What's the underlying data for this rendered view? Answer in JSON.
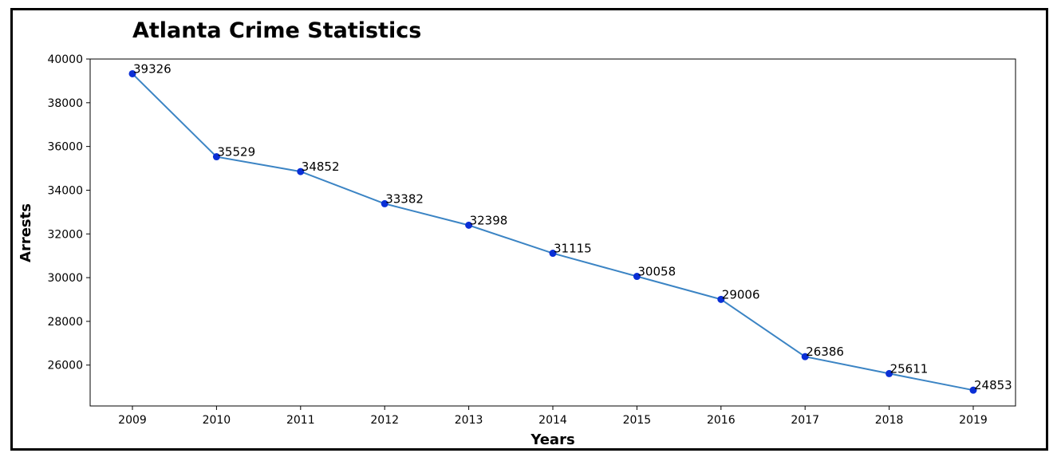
{
  "chart_data": {
    "type": "line",
    "title": "Atlanta Crime Statistics",
    "xlabel": "Years",
    "ylabel": "Arrests",
    "categories": [
      "2009",
      "2010",
      "2011",
      "2012",
      "2013",
      "2014",
      "2015",
      "2016",
      "2017",
      "2018",
      "2019"
    ],
    "values": [
      39326,
      35529,
      34852,
      33382,
      32398,
      31115,
      30058,
      29006,
      26386,
      25611,
      24853
    ],
    "data_labels": [
      "39326",
      "35529",
      "34852",
      "33382",
      "32398",
      "31115",
      "30058",
      "29006",
      "26386",
      "25611",
      "24853"
    ],
    "yticks": [
      26000,
      28000,
      30000,
      32000,
      34000,
      36000,
      38000,
      40000
    ],
    "ytick_labels": [
      "26000",
      "28000",
      "30000",
      "32000",
      "34000",
      "36000",
      "38000",
      "40000"
    ],
    "ylim": [
      24130,
      40000
    ],
    "grid": false,
    "colors": {
      "line": "#3b84c4",
      "marker": "#0a2fd6",
      "frame": "#000000"
    }
  }
}
